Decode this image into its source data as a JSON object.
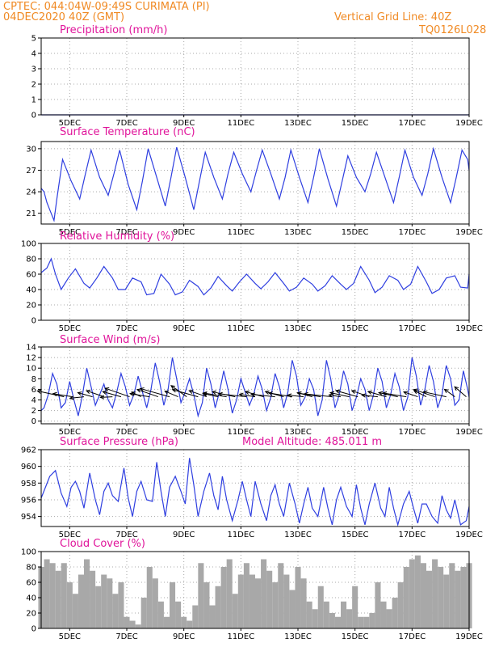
{
  "header": {
    "line1": "CPTEC:   044:04W-09:49S   CURIMATA (PI)",
    "line2": "04DEC2020  40Z  (GMT)",
    "grid_note": "Vertical Grid Line: 40Z",
    "code": "TQ0126L028"
  },
  "colors": {
    "header": "#f08a24",
    "title": "#e0149a",
    "line": "#2f3fe0",
    "bars": "#a8a8a8",
    "arrows": "#000000"
  },
  "x_axis": {
    "day_start": 4.0,
    "day_end": 19.0,
    "tick_days": [
      5,
      7,
      9,
      11,
      13,
      15,
      17,
      19
    ],
    "tick_labels": [
      "5DEC",
      "7DEC",
      "9DEC",
      "11DEC",
      "13DEC",
      "15DEC",
      "17DEC",
      "19DEC"
    ]
  },
  "chart_data": [
    {
      "type": "line",
      "title": "Precipitation (mm/h)",
      "xlabel": "",
      "ylabel": "",
      "ylim": [
        0,
        5
      ],
      "yticks": [
        0,
        1,
        2,
        3,
        4,
        5
      ],
      "grid": true,
      "x": [
        4.0,
        19.0
      ],
      "values": [
        0.0,
        0.0
      ]
    },
    {
      "type": "line",
      "title": "Surface Temperature (nC)",
      "xlabel": "",
      "ylabel": "",
      "ylim": [
        19.5,
        31
      ],
      "yticks": [
        21,
        24,
        27,
        30
      ],
      "grid": true,
      "x": [
        4.0,
        4.1,
        4.2,
        4.3,
        4.45,
        4.55,
        4.75,
        5.05,
        5.35,
        5.55,
        5.75,
        6.05,
        6.35,
        6.55,
        6.75,
        7.05,
        7.35,
        7.55,
        7.75,
        8.05,
        8.35,
        8.55,
        8.75,
        9.05,
        9.35,
        9.55,
        9.75,
        10.05,
        10.35,
        10.55,
        10.75,
        11.05,
        11.35,
        11.55,
        11.75,
        12.05,
        12.35,
        12.55,
        12.75,
        13.05,
        13.35,
        13.55,
        13.75,
        14.05,
        14.35,
        14.55,
        14.75,
        15.05,
        15.35,
        15.55,
        15.75,
        16.05,
        16.35,
        16.55,
        16.75,
        17.05,
        17.35,
        17.55,
        17.75,
        18.05,
        18.35,
        18.55,
        18.75,
        18.95,
        19.0
      ],
      "values": [
        24.5,
        24.0,
        22.5,
        21.5,
        20.0,
        23.0,
        28.5,
        25.5,
        23.0,
        26.5,
        29.8,
        26.0,
        23.5,
        26.5,
        29.8,
        25.0,
        21.5,
        25.5,
        30.0,
        26.0,
        22.0,
        26.0,
        30.2,
        26.0,
        21.5,
        25.5,
        29.5,
        26.0,
        23.0,
        26.5,
        29.5,
        26.5,
        24.0,
        27.0,
        29.8,
        26.5,
        23.0,
        26.0,
        29.8,
        26.0,
        22.5,
        26.0,
        30.0,
        25.8,
        22.0,
        25.5,
        29.0,
        26.0,
        24.0,
        26.5,
        29.5,
        26.0,
        22.5,
        26.0,
        29.8,
        26.0,
        23.5,
        26.5,
        30.0,
        26.0,
        22.5,
        26.0,
        29.8,
        28.5,
        27.0
      ]
    },
    {
      "type": "line",
      "title": "Relative Humidity (%)",
      "xlabel": "",
      "ylabel": "",
      "ylim": [
        0,
        100
      ],
      "yticks": [
        0,
        20,
        40,
        60,
        80,
        100
      ],
      "grid": true,
      "x": [
        4.0,
        4.2,
        4.35,
        4.5,
        4.7,
        4.95,
        5.2,
        5.5,
        5.7,
        5.95,
        6.2,
        6.5,
        6.7,
        6.95,
        7.2,
        7.5,
        7.7,
        7.95,
        8.2,
        8.5,
        8.7,
        8.95,
        9.2,
        9.5,
        9.7,
        9.95,
        10.2,
        10.5,
        10.7,
        10.95,
        11.2,
        11.5,
        11.7,
        11.95,
        12.2,
        12.5,
        12.7,
        12.95,
        13.2,
        13.5,
        13.7,
        13.95,
        14.2,
        14.5,
        14.7,
        14.95,
        15.2,
        15.5,
        15.7,
        15.95,
        16.2,
        16.5,
        16.7,
        16.95,
        17.2,
        17.5,
        17.7,
        17.95,
        18.2,
        18.5,
        18.7,
        18.95,
        19.0
      ],
      "values": [
        62,
        68,
        80,
        60,
        40,
        55,
        67,
        48,
        42,
        55,
        70,
        55,
        40,
        40,
        55,
        50,
        33,
        35,
        60,
        47,
        33,
        37,
        52,
        44,
        33,
        42,
        57,
        45,
        38,
        50,
        60,
        48,
        41,
        50,
        62,
        48,
        38,
        43,
        55,
        47,
        38,
        45,
        58,
        47,
        40,
        48,
        70,
        52,
        36,
        43,
        58,
        52,
        40,
        47,
        70,
        50,
        35,
        40,
        55,
        58,
        43,
        42,
        60
      ]
    },
    {
      "type": "line",
      "title": "Surface Wind (m/s)",
      "xlabel": "",
      "ylabel": "",
      "ylim": [
        -0.5,
        14
      ],
      "yticks": [
        0,
        2,
        4,
        6,
        8,
        10,
        12,
        14
      ],
      "grid": true,
      "x": [
        4.0,
        4.1,
        4.25,
        4.4,
        4.55,
        4.7,
        4.85,
        5.0,
        5.15,
        5.3,
        5.45,
        5.6,
        5.75,
        5.9,
        6.05,
        6.2,
        6.35,
        6.5,
        6.65,
        6.8,
        6.95,
        7.1,
        7.25,
        7.4,
        7.55,
        7.7,
        7.85,
        8.0,
        8.15,
        8.3,
        8.45,
        8.6,
        8.75,
        8.9,
        9.05,
        9.2,
        9.35,
        9.5,
        9.65,
        9.8,
        9.95,
        10.1,
        10.25,
        10.4,
        10.55,
        10.7,
        10.85,
        11.0,
        11.15,
        11.3,
        11.45,
        11.6,
        11.75,
        11.9,
        12.05,
        12.2,
        12.35,
        12.5,
        12.65,
        12.8,
        12.95,
        13.1,
        13.25,
        13.4,
        13.55,
        13.7,
        13.85,
        14.0,
        14.15,
        14.3,
        14.45,
        14.6,
        14.75,
        14.9,
        15.05,
        15.2,
        15.35,
        15.5,
        15.65,
        15.8,
        15.95,
        16.1,
        16.25,
        16.4,
        16.55,
        16.7,
        16.85,
        17.0,
        17.15,
        17.3,
        17.45,
        17.6,
        17.75,
        17.9,
        18.05,
        18.2,
        18.35,
        18.5,
        18.65,
        18.8,
        18.95,
        19.0
      ],
      "values": [
        2.0,
        2.5,
        5.0,
        9.0,
        7.0,
        2.5,
        3.5,
        7.5,
        4.0,
        1.0,
        5.0,
        10.0,
        6.5,
        3.0,
        5.0,
        7.0,
        4.0,
        2.5,
        5.5,
        9.0,
        6.5,
        3.0,
        5.0,
        8.5,
        5.5,
        2.5,
        6.0,
        11.0,
        7.5,
        3.0,
        6.0,
        12.0,
        8.0,
        3.5,
        5.5,
        8.0,
        5.0,
        1.0,
        3.5,
        10.0,
        7.0,
        2.5,
        5.5,
        9.5,
        6.0,
        1.5,
        4.0,
        8.0,
        5.5,
        3.0,
        5.0,
        8.5,
        6.0,
        2.0,
        4.5,
        9.0,
        6.5,
        2.5,
        5.5,
        11.5,
        8.5,
        3.0,
        4.5,
        8.0,
        6.0,
        1.0,
        4.0,
        11.5,
        8.0,
        2.5,
        5.0,
        9.5,
        7.0,
        2.0,
        4.5,
        8.0,
        6.0,
        2.0,
        5.0,
        10.0,
        7.5,
        2.5,
        5.0,
        9.0,
        6.5,
        2.0,
        4.5,
        12.0,
        8.5,
        3.0,
        6.0,
        10.5,
        7.5,
        2.5,
        5.0,
        10.5,
        8.0,
        3.0,
        4.0,
        9.5,
        6.0,
        4.5
      ]
    },
    {
      "type": "line",
      "title": "Surface Pressure (hPa)",
      "annotation": "Model Altitude: 485.011 m",
      "xlabel": "",
      "ylabel": "",
      "ylim": [
        952.8,
        962
      ],
      "yticks": [
        954,
        956,
        958,
        960,
        962
      ],
      "grid": true,
      "x": [
        4.0,
        4.15,
        4.3,
        4.5,
        4.7,
        4.9,
        5.05,
        5.2,
        5.35,
        5.5,
        5.7,
        5.9,
        6.05,
        6.2,
        6.35,
        6.5,
        6.7,
        6.9,
        7.05,
        7.2,
        7.35,
        7.5,
        7.7,
        7.9,
        8.05,
        8.2,
        8.35,
        8.5,
        8.7,
        8.9,
        9.05,
        9.2,
        9.35,
        9.5,
        9.7,
        9.9,
        10.05,
        10.2,
        10.35,
        10.5,
        10.7,
        10.9,
        11.05,
        11.2,
        11.35,
        11.5,
        11.7,
        11.9,
        12.05,
        12.2,
        12.35,
        12.5,
        12.7,
        12.9,
        13.05,
        13.2,
        13.35,
        13.5,
        13.7,
        13.9,
        14.05,
        14.2,
        14.35,
        14.5,
        14.7,
        14.9,
        15.05,
        15.2,
        15.35,
        15.5,
        15.7,
        15.9,
        16.05,
        16.2,
        16.35,
        16.5,
        16.7,
        16.9,
        17.05,
        17.2,
        17.35,
        17.5,
        17.7,
        17.9,
        18.05,
        18.2,
        18.35,
        18.5,
        18.7,
        18.9,
        19.0
      ],
      "values": [
        956.2,
        957.5,
        958.8,
        959.5,
        956.8,
        955.2,
        957.5,
        958.2,
        957.0,
        955.0,
        959.2,
        956.0,
        954.2,
        957.0,
        958.0,
        956.5,
        955.8,
        959.8,
        956.2,
        954.0,
        957.0,
        958.2,
        956.0,
        955.8,
        960.5,
        957.0,
        954.0,
        957.5,
        958.8,
        957.0,
        955.5,
        961.0,
        957.8,
        954.0,
        957.0,
        959.2,
        956.5,
        954.8,
        958.8,
        956.0,
        953.5,
        956.0,
        958.2,
        956.0,
        954.0,
        958.2,
        955.5,
        953.5,
        956.5,
        957.8,
        955.5,
        954.0,
        958.0,
        955.5,
        953.2,
        955.5,
        957.5,
        955.0,
        954.0,
        957.5,
        955.0,
        953.0,
        956.0,
        957.5,
        955.2,
        954.0,
        957.8,
        955.0,
        953.0,
        955.5,
        958.0,
        955.0,
        954.0,
        957.5,
        955.0,
        953.0,
        955.5,
        957.0,
        955.0,
        953.2,
        955.5,
        955.5,
        954.0,
        953.2,
        956.5,
        954.8,
        953.8,
        956.0,
        953.0,
        953.5,
        955.2
      ]
    },
    {
      "type": "bar",
      "title": "Cloud Cover (%)",
      "xlabel": "",
      "ylabel": "",
      "ylim": [
        0,
        100
      ],
      "yticks": [
        0,
        20,
        40,
        60,
        80,
        100
      ],
      "grid": true,
      "x": [
        4.0,
        4.2,
        4.4,
        4.6,
        4.8,
        5.0,
        5.2,
        5.4,
        5.6,
        5.8,
        6.0,
        6.2,
        6.4,
        6.6,
        6.8,
        7.0,
        7.2,
        7.4,
        7.6,
        7.8,
        8.0,
        8.2,
        8.4,
        8.6,
        8.8,
        9.0,
        9.2,
        9.4,
        9.6,
        9.8,
        10.0,
        10.2,
        10.4,
        10.6,
        10.8,
        11.0,
        11.2,
        11.4,
        11.6,
        11.8,
        12.0,
        12.2,
        12.4,
        12.6,
        12.8,
        13.0,
        13.2,
        13.4,
        13.6,
        13.8,
        14.0,
        14.2,
        14.4,
        14.6,
        14.8,
        15.0,
        15.2,
        15.4,
        15.6,
        15.8,
        16.0,
        16.2,
        16.4,
        16.6,
        16.8,
        17.0,
        17.2,
        17.4,
        17.6,
        17.8,
        18.0,
        18.2,
        18.4,
        18.6,
        18.8,
        19.0
      ],
      "values": [
        80,
        90,
        85,
        75,
        85,
        60,
        45,
        70,
        90,
        75,
        55,
        70,
        65,
        45,
        60,
        15,
        10,
        5,
        40,
        80,
        65,
        35,
        15,
        60,
        35,
        15,
        10,
        30,
        85,
        60,
        30,
        55,
        80,
        90,
        45,
        70,
        85,
        70,
        65,
        90,
        75,
        60,
        85,
        70,
        50,
        80,
        65,
        35,
        25,
        55,
        35,
        20,
        15,
        35,
        25,
        55,
        15,
        15,
        20,
        60,
        35,
        25,
        40,
        60,
        80,
        90,
        95,
        85,
        75,
        90,
        80,
        70,
        85,
        75,
        80,
        85
      ]
    }
  ],
  "wind_vectors": {
    "x": [
      4.8,
      5.1,
      5.5,
      5.8,
      6.2,
      6.5,
      6.8,
      7.1,
      7.5,
      7.8,
      8.1,
      8.5,
      8.8,
      9.1,
      9.5,
      9.8,
      10.2,
      10.5,
      10.8,
      11.2,
      11.5,
      11.8,
      12.2,
      12.5,
      12.8,
      13.2,
      13.5,
      13.8,
      14.2,
      14.5,
      14.8,
      15.1,
      15.5,
      15.8,
      16.1,
      16.5,
      16.8,
      17.2,
      17.5,
      17.8,
      18.2,
      18.5,
      18.9
    ],
    "speed": [
      7,
      5,
      3.5,
      4,
      5,
      3,
      5,
      7,
      3,
      5,
      6,
      8,
      4,
      6,
      7,
      5,
      4,
      6,
      6,
      7,
      4,
      5,
      6,
      5,
      6,
      4,
      4,
      6,
      7,
      3,
      5,
      6,
      5,
      4,
      5,
      5,
      6,
      4,
      4,
      6,
      6,
      4,
      5
    ],
    "dir_deg": [
      200,
      195,
      170,
      205,
      210,
      175,
      205,
      210,
      220,
      195,
      210,
      205,
      215,
      230,
      205,
      210,
      200,
      195,
      200,
      190,
      195,
      205,
      190,
      205,
      195,
      190,
      205,
      195,
      190,
      195,
      200,
      205,
      210,
      190,
      205,
      200,
      195,
      210,
      220,
      210,
      200,
      230,
      235
    ]
  }
}
